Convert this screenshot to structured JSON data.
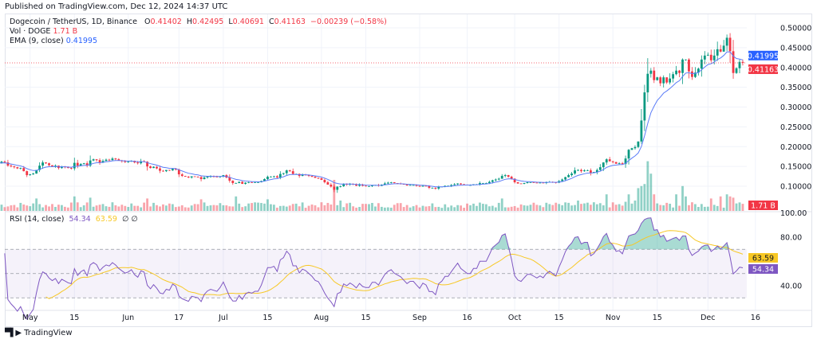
{
  "published": "Published on TradingView.com, Dec 12, 2024 14:37 UTC",
  "legend": {
    "symbol": "Dogecoin / TetherUS, 1D, Binance",
    "o_label": "O",
    "o": "0.41402",
    "h_label": "H",
    "h": "0.42495",
    "l_label": "L",
    "l": "0.40691",
    "c_label": "C",
    "c": "0.41163",
    "change": "−0.00239 (−0.58%)",
    "vol_label": "Vol · DOGE",
    "vol": "1.71 B",
    "ema_label": "EMA (9, close)",
    "ema": "0.41995",
    "rsi_label": "RSI (14, close)",
    "rsi": "54.34",
    "rsi_ma": "63.59",
    "rsi_extra1": "∅",
    "rsi_extra2": "∅"
  },
  "footer": {
    "logo": "TV",
    "brand": "TradingView"
  },
  "colors": {
    "up": "#089981",
    "down": "#f23645",
    "ema": "#2962ff",
    "rsi": "#7e57c2",
    "rsi_ma": "#f7c825",
    "rsi_band": "#7e57c2"
  },
  "chart_data": {
    "type": "candlestick",
    "start_date": "2024-04-21",
    "interval": "1D",
    "closes": [
      0.158,
      0.162,
      0.16,
      0.152,
      0.15,
      0.148,
      0.145,
      0.146,
      0.138,
      0.128,
      0.13,
      0.132,
      0.141,
      0.152,
      0.16,
      0.158,
      0.153,
      0.15,
      0.152,
      0.146,
      0.15,
      0.148,
      0.146,
      0.145,
      0.159,
      0.152,
      0.156,
      0.158,
      0.152,
      0.165,
      0.168,
      0.166,
      0.16,
      0.164,
      0.167,
      0.166,
      0.17,
      0.168,
      0.165,
      0.163,
      0.161,
      0.162,
      0.164,
      0.16,
      0.158,
      0.163,
      0.162,
      0.15,
      0.146,
      0.149,
      0.145,
      0.139,
      0.138,
      0.141,
      0.14,
      0.144,
      0.142,
      0.13,
      0.126,
      0.124,
      0.122,
      0.125,
      0.124,
      0.123,
      0.118,
      0.122,
      0.124,
      0.125,
      0.124,
      0.123,
      0.125,
      0.128,
      0.122,
      0.114,
      0.108,
      0.108,
      0.111,
      0.106,
      0.109,
      0.11,
      0.109,
      0.11,
      0.11,
      0.113,
      0.118,
      0.124,
      0.124,
      0.125,
      0.122,
      0.131,
      0.133,
      0.14,
      0.138,
      0.131,
      0.131,
      0.126,
      0.129,
      0.128,
      0.126,
      0.124,
      0.121,
      0.12,
      0.116,
      0.11,
      0.104,
      0.099,
      0.091,
      0.099,
      0.1,
      0.106,
      0.104,
      0.106,
      0.104,
      0.101,
      0.104,
      0.101,
      0.1,
      0.1,
      0.103,
      0.103,
      0.101,
      0.104,
      0.107,
      0.109,
      0.11,
      0.108,
      0.107,
      0.106,
      0.104,
      0.102,
      0.103,
      0.103,
      0.101,
      0.099,
      0.101,
      0.1,
      0.096,
      0.096,
      0.094,
      0.098,
      0.099,
      0.101,
      0.101,
      0.103,
      0.105,
      0.107,
      0.105,
      0.104,
      0.103,
      0.103,
      0.105,
      0.105,
      0.108,
      0.108,
      0.108,
      0.111,
      0.115,
      0.117,
      0.119,
      0.126,
      0.128,
      0.124,
      0.119,
      0.11,
      0.107,
      0.106,
      0.108,
      0.11,
      0.11,
      0.109,
      0.108,
      0.109,
      0.108,
      0.11,
      0.111,
      0.11,
      0.109,
      0.113,
      0.117,
      0.123,
      0.128,
      0.132,
      0.14,
      0.141,
      0.138,
      0.14,
      0.14,
      0.134,
      0.136,
      0.141,
      0.148,
      0.16,
      0.168,
      0.163,
      0.161,
      0.157,
      0.158,
      0.156,
      0.17,
      0.192,
      0.196,
      0.199,
      0.213,
      0.266,
      0.337,
      0.384,
      0.392,
      0.368,
      0.375,
      0.36,
      0.375,
      0.362,
      0.372,
      0.383,
      0.392,
      0.386,
      0.42,
      0.42,
      0.39,
      0.376,
      0.387,
      0.397,
      0.42,
      0.43,
      0.432,
      0.418,
      0.43,
      0.446,
      0.44,
      0.455,
      0.475,
      0.441,
      0.386,
      0.398,
      0.414,
      0.41163
    ],
    "volume_billions_base": 1.5,
    "volume_spikes_billions": {
      "2024-05-03": 3,
      "2024-05-15": 3.5,
      "2024-05-20": 3.2,
      "2024-06-07": 3,
      "2024-06-24": 2.8,
      "2024-07-05": 3.5,
      "2024-07-15": 2.8,
      "2024-08-05": 7.5,
      "2024-08-07": 2.5,
      "2024-09-27": 3,
      "2024-10-21": 2.5,
      "2024-10-30": 4,
      "2024-11-05": 2.2,
      "2024-11-06": 4,
      "2024-11-08": 2.5,
      "2024-11-09": 5.5,
      "2024-11-10": 6,
      "2024-11-11": 6.5,
      "2024-11-12": 12,
      "2024-11-13": 9,
      "2024-11-14": 4,
      "2024-11-21": 4,
      "2024-11-23": 6,
      "2024-11-24": 3.5,
      "2024-12-02": 3,
      "2024-12-05": 3.5,
      "2024-12-07": 4,
      "2024-12-08": 3.5,
      "2024-12-09": 3.2,
      "2024-12-10": 1.8,
      "2024-12-12": 1.71
    },
    "ema_period": 9,
    "rsi_period": 14,
    "rsi_ma_period": 14,
    "price_ticks": [
      "0.50000",
      "0.45000",
      "0.40000",
      "0.35000",
      "0.30000",
      "0.25000",
      "0.20000",
      "0.15000",
      "0.10000"
    ],
    "rsi_ticks": [
      "100.00",
      "80.00",
      "40.00"
    ],
    "rsi_bands": [
      70,
      50,
      30
    ],
    "x_ticks": [
      [
        "2024-05-01",
        "May"
      ],
      [
        "2024-05-15",
        "15"
      ],
      [
        "2024-06-01",
        "Jun"
      ],
      [
        "2024-06-17",
        "17"
      ],
      [
        "2024-07-01",
        "Jul"
      ],
      [
        "2024-07-15",
        "15"
      ],
      [
        "2024-08-01",
        "Aug"
      ],
      [
        "2024-08-15",
        "15"
      ],
      [
        "2024-09-01",
        "Sep"
      ],
      [
        "2024-09-16",
        "16"
      ],
      [
        "2024-10-01",
        "Oct"
      ],
      [
        "2024-10-15",
        "15"
      ],
      [
        "2024-11-01",
        "Nov"
      ],
      [
        "2024-11-15",
        "15"
      ],
      [
        "2024-12-01",
        "Dec"
      ],
      [
        "2024-12-16",
        "16"
      ]
    ],
    "last_price_tag": "0.41163",
    "ema_tag": "0.41995",
    "vol_tag": "1.71 B",
    "rsi_tag": "54.34",
    "rsi_ma_tag": "63.59"
  }
}
